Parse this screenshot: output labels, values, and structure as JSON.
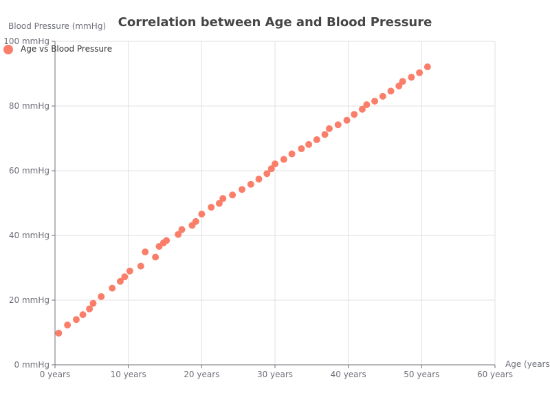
{
  "colors": {
    "series": "#fa7f6a",
    "grid": "#e0e0e0",
    "axis": "#6e7079",
    "title": "#464646"
  },
  "chart_data": {
    "type": "scatter",
    "title": "Correlation between Age and Blood Pressure",
    "xlabel": "Age (years)",
    "ylabel": "Blood Pressure (mmHg)",
    "xlim": [
      0,
      60
    ],
    "ylim": [
      0,
      100
    ],
    "x_ticks": [
      0,
      10,
      20,
      30,
      40,
      50,
      60
    ],
    "y_ticks": [
      0,
      20,
      40,
      60,
      80,
      100
    ],
    "x_tick_labels": [
      "0 years",
      "10 years",
      "20 years",
      "30 years",
      "40 years",
      "50 years",
      "60 years"
    ],
    "y_tick_labels": [
      "0 mmHg",
      "20 mmHg",
      "40 mmHg",
      "60 mmHg",
      "80 mmHg",
      "100 mmHg"
    ],
    "grid": true,
    "legend_position": "top-left",
    "series": [
      {
        "name": "Age vs Blood Pressure",
        "points": [
          [
            0.5,
            9.8
          ],
          [
            1.7,
            12.3
          ],
          [
            2.9,
            14.0
          ],
          [
            3.8,
            15.5
          ],
          [
            4.7,
            17.3
          ],
          [
            5.2,
            19.0
          ],
          [
            6.3,
            21.1
          ],
          [
            7.8,
            23.7
          ],
          [
            8.9,
            25.8
          ],
          [
            9.5,
            27.2
          ],
          [
            10.2,
            29.0
          ],
          [
            11.7,
            30.5
          ],
          [
            12.3,
            34.9
          ],
          [
            13.7,
            33.3
          ],
          [
            14.2,
            36.6
          ],
          [
            14.8,
            37.7
          ],
          [
            15.2,
            38.4
          ],
          [
            16.8,
            40.3
          ],
          [
            17.3,
            41.8
          ],
          [
            18.7,
            43.1
          ],
          [
            19.2,
            44.3
          ],
          [
            20.0,
            46.6
          ],
          [
            21.3,
            48.7
          ],
          [
            22.4,
            49.9
          ],
          [
            22.9,
            51.4
          ],
          [
            24.2,
            52.5
          ],
          [
            25.5,
            54.2
          ],
          [
            26.7,
            55.8
          ],
          [
            27.8,
            57.4
          ],
          [
            28.9,
            59.1
          ],
          [
            29.5,
            60.6
          ],
          [
            30.0,
            62.1
          ],
          [
            31.2,
            63.5
          ],
          [
            32.3,
            65.2
          ],
          [
            33.6,
            66.8
          ],
          [
            34.6,
            68.1
          ],
          [
            35.7,
            69.6
          ],
          [
            36.8,
            71.2
          ],
          [
            37.4,
            73.0
          ],
          [
            38.6,
            74.2
          ],
          [
            39.8,
            75.6
          ],
          [
            40.8,
            77.4
          ],
          [
            41.9,
            79.0
          ],
          [
            42.5,
            80.4
          ],
          [
            43.6,
            81.5
          ],
          [
            44.7,
            83.0
          ],
          [
            45.8,
            84.6
          ],
          [
            46.9,
            86.2
          ],
          [
            47.4,
            87.6
          ],
          [
            48.6,
            88.9
          ],
          [
            49.7,
            90.3
          ],
          [
            50.8,
            92.1
          ]
        ]
      }
    ]
  }
}
